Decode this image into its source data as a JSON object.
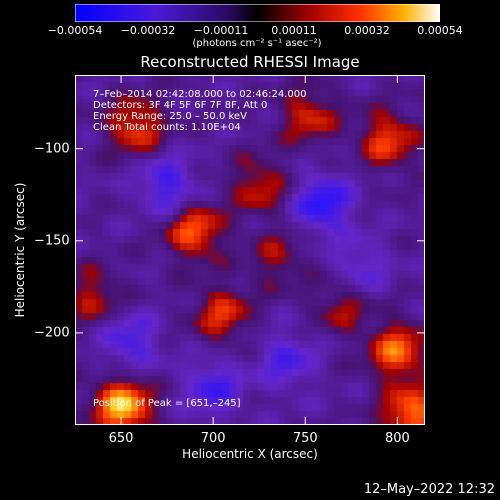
{
  "chart_data": {
    "type": "heatmap",
    "title": "Reconstructed RHESSI Image",
    "xlabel": "Heliocentric X (arcsec)",
    "ylabel": "Heliocentric Y (arcsec)",
    "xlim": [
      625,
      815
    ],
    "ylim": [
      -250,
      -60
    ],
    "x_ticks": [
      "650",
      "700",
      "750",
      "800"
    ],
    "y_ticks": [
      "−100",
      "−150",
      "−200"
    ],
    "colorbar": {
      "ticks": [
        "−0.00054",
        "−0.00032",
        "−0.00011",
        "0.00011",
        "0.00032",
        "0.00054"
      ],
      "units": "(photons cm⁻² s⁻¹ asec⁻²)",
      "range": [
        -0.00054,
        0.00054
      ]
    },
    "annotations": [
      "7–Feb–2014 02:42:08.000 to 02:46:24.000",
      "Detectors: 3F 4F 5F 6F 7F 8F, Att 0",
      "Energy Range: 25.0 – 50.0 keV",
      "Clean     Total counts: 1.10E+04"
    ],
    "peak_label": "Position of Peak = [651,–245]",
    "peak": [
      651,
      -245
    ],
    "hot_spots": [
      {
        "x": 651,
        "y": -240,
        "v": 0.00054
      },
      {
        "x": 705,
        "y": -190,
        "v": 0.0003
      },
      {
        "x": 690,
        "y": -145,
        "v": 0.00038
      },
      {
        "x": 725,
        "y": -120,
        "v": 0.00026
      },
      {
        "x": 658,
        "y": -88,
        "v": 0.00034
      },
      {
        "x": 752,
        "y": -82,
        "v": 0.00028
      },
      {
        "x": 795,
        "y": -95,
        "v": 0.00034
      },
      {
        "x": 800,
        "y": -210,
        "v": 0.0004
      },
      {
        "x": 808,
        "y": -245,
        "v": 0.00044
      },
      {
        "x": 770,
        "y": -185,
        "v": 0.00022
      },
      {
        "x": 735,
        "y": -160,
        "v": 0.0002
      },
      {
        "x": 635,
        "y": -180,
        "v": 0.00024
      }
    ],
    "cold_spots": [
      {
        "x": 675,
        "y": -120,
        "v": -0.00032
      },
      {
        "x": 760,
        "y": -130,
        "v": -0.0004
      },
      {
        "x": 700,
        "y": -230,
        "v": -0.0003
      },
      {
        "x": 655,
        "y": -205,
        "v": -0.00028
      },
      {
        "x": 780,
        "y": -165,
        "v": -0.00022
      },
      {
        "x": 740,
        "y": -215,
        "v": -0.00026
      }
    ]
  },
  "footer": {
    "timestamp": "12–May–2022 12:32"
  }
}
